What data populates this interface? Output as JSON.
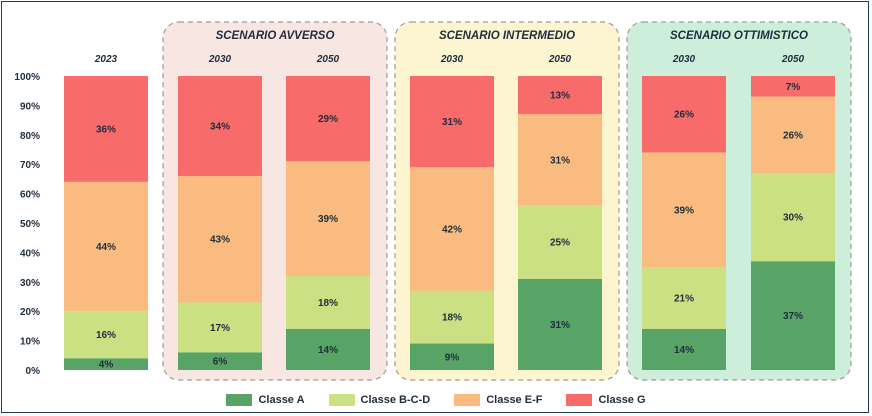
{
  "chart_data": {
    "type": "bar",
    "stacked": true,
    "percent": true,
    "ylim": [
      0,
      100
    ],
    "yticks": [
      "0%",
      "10%",
      "20%",
      "30%",
      "40%",
      "50%",
      "60%",
      "70%",
      "80%",
      "90%",
      "100%"
    ],
    "groups": [
      {
        "label": "",
        "color": "",
        "categories": [
          "2023"
        ]
      },
      {
        "label": "SCENARIO AVVERSO",
        "color": "#f8e6e3",
        "categories": [
          "2030",
          "2050"
        ]
      },
      {
        "label": "SCENARIO INTERMEDIO",
        "color": "#fcf5cf",
        "categories": [
          "2030",
          "2050"
        ]
      },
      {
        "label": "SCENARIO OTTIMISTICO",
        "color": "#cdeedb",
        "categories": [
          "2030",
          "2050"
        ]
      }
    ],
    "categories": [
      "2023",
      "2030",
      "2050",
      "2030",
      "2050",
      "2030",
      "2050"
    ],
    "series": [
      {
        "name": "Classe A",
        "color": "#57a466",
        "values": [
          4,
          6,
          14,
          9,
          31,
          14,
          37
        ],
        "labels": [
          "4%",
          "6%",
          "14%",
          "9%",
          "31%",
          "14%",
          "37%"
        ]
      },
      {
        "name": "Classe B-C-D",
        "color": "#cbdf83",
        "values": [
          16,
          17,
          18,
          18,
          25,
          21,
          30
        ],
        "labels": [
          "16%",
          "17%",
          "18%",
          "18%",
          "25%",
          "21%",
          "30%"
        ]
      },
      {
        "name": "Classe E-F",
        "color": "#f9bb80",
        "values": [
          44,
          43,
          39,
          42,
          31,
          39,
          26
        ],
        "labels": [
          "44%",
          "43%",
          "39%",
          "42%",
          "31%",
          "39%",
          "26%"
        ]
      },
      {
        "name": "Classe G",
        "color": "#f76b6b",
        "values": [
          36,
          34,
          29,
          31,
          13,
          26,
          7
        ],
        "labels": [
          "36%",
          "34%",
          "29%",
          "31%",
          "13%",
          "26%",
          "7%"
        ]
      }
    ],
    "legend": "bottom"
  }
}
